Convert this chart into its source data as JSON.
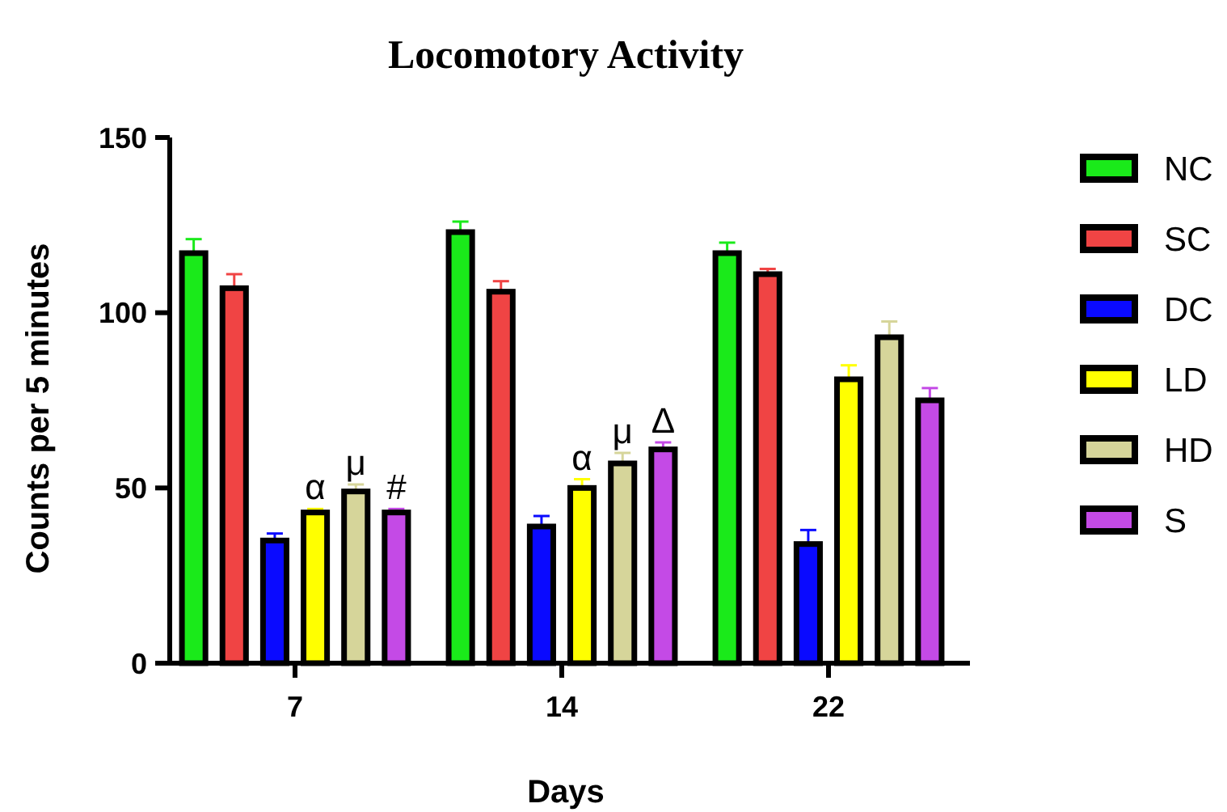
{
  "chart_data": {
    "type": "bar",
    "title": "Locomotory Activity",
    "xlabel": "Days",
    "ylabel": "Counts per 5 minutes",
    "categories": [
      "7",
      "14",
      "22"
    ],
    "series": [
      {
        "name": "NC",
        "color": "#1aea1a",
        "values": [
          117,
          123,
          117
        ],
        "errors": [
          4,
          3,
          3
        ]
      },
      {
        "name": "SC",
        "color": "#f04444",
        "values": [
          107,
          106,
          111
        ],
        "errors": [
          4,
          3,
          1.5
        ]
      },
      {
        "name": "DC",
        "color": "#0a0aff",
        "values": [
          35,
          39,
          34
        ],
        "errors": [
          2,
          3,
          4
        ]
      },
      {
        "name": "LD",
        "color": "#ffff00",
        "values": [
          43,
          50,
          81
        ],
        "errors": [
          1,
          2.5,
          4
        ]
      },
      {
        "name": "HD",
        "color": "#d6d59a",
        "values": [
          49,
          57,
          93
        ],
        "errors": [
          2,
          3,
          4.5
        ]
      },
      {
        "name": "S",
        "color": "#c44ae6",
        "values": [
          43,
          61,
          75
        ],
        "errors": [
          1,
          2,
          3.5
        ]
      }
    ],
    "annotations": [
      "α",
      "μ",
      "#",
      "α",
      "μ",
      "Δ"
    ],
    "ylim": [
      0,
      150
    ],
    "yticks": [
      0,
      50,
      100,
      150
    ],
    "grid": false,
    "legend": "right"
  }
}
